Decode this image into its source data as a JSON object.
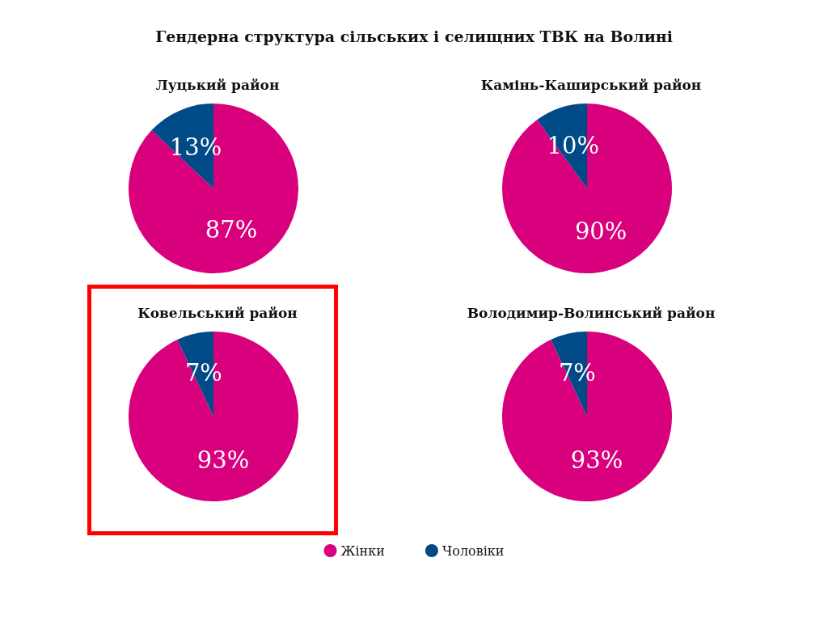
{
  "chart_data": [
    {
      "type": "other",
      "title": "Гендерна структура сільських і селищних ТВК на Волині"
    },
    {
      "type": "pie",
      "title": "Луцький район",
      "values": [
        87,
        13
      ],
      "colors": [
        "#d9007e",
        "#004a87"
      ],
      "value_labels": [
        "87%",
        "13%"
      ]
    },
    {
      "type": "pie",
      "title": "Камінь-Каширський район",
      "values": [
        90,
        10
      ],
      "colors": [
        "#d9007e",
        "#004a87"
      ],
      "value_labels": [
        "90%",
        "10%"
      ]
    },
    {
      "type": "pie",
      "title": "Ковельський район",
      "values": [
        93,
        7
      ],
      "colors": [
        "#d9007e",
        "#004a87"
      ],
      "value_labels": [
        "93%",
        "7%"
      ]
    },
    {
      "type": "pie",
      "title": "Володимир-Волинський район",
      "categories": [
        "Жінки",
        "Чоловіки"
      ],
      "values": [
        93,
        7
      ],
      "colors": [
        "#d9007e",
        "#004a87"
      ],
      "value_labels": [
        "93%",
        "7%"
      ],
      "legend": "bottom"
    }
  ]
}
